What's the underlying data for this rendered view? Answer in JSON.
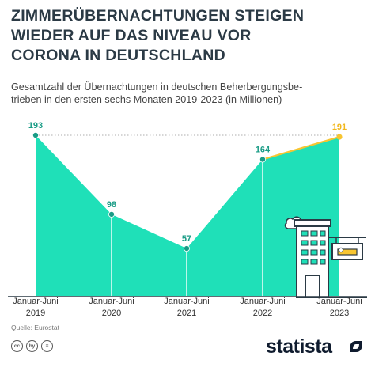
{
  "header": {
    "title_lines": [
      "ZIMMERÜBERNACHTUNGEN STEIGEN",
      "WIEDER AUF DAS NIVEAU VOR",
      "CORONA IN DEUTSCHLAND"
    ],
    "subtitle_lines": [
      "Gesamtzahl der Übernachtungen in deutschen Beherbergungsbe-",
      "trieben in den ersten sechs Monaten 2019-2023 (in Millionen)"
    ]
  },
  "chart_data": {
    "type": "area",
    "title": "ZIMMERÜBERNACHTUNGEN STEIGEN WIEDER AUF DAS NIVEAU VOR CORONA IN DEUTSCHLAND",
    "subtitle": "Gesamtzahl der Übernachtungen in deutschen Beherbergungsbetrieben in den ersten sechs Monaten 2019-2023 (in Millionen)",
    "categories": [
      {
        "line1": "Januar-Juni",
        "line2": "2019"
      },
      {
        "line1": "Januar-Juni",
        "line2": "2020"
      },
      {
        "line1": "Januar-Juni",
        "line2": "2021"
      },
      {
        "line1": "Januar-Juni",
        "line2": "2022"
      },
      {
        "line1": "Januar-Juni",
        "line2": "2023"
      }
    ],
    "values": [
      193,
      98,
      57,
      164,
      191
    ],
    "value_labels": [
      "193",
      "98",
      "57",
      "164",
      "191"
    ],
    "xlabel": "",
    "ylabel": "",
    "ylim": [
      0,
      193
    ],
    "grid": false,
    "reference_line_value": 193,
    "colors": {
      "area": "#1fe0b8",
      "point": "#1a9c86",
      "highlight": "#f7c531",
      "label": "#1a9c86",
      "highlight_label": "#f2b81f",
      "reference": "#bdbdbd"
    }
  },
  "footer": {
    "source": "Quelle: Eurostat",
    "license_icons": [
      "cc",
      "by",
      "="
    ],
    "brand": "statista"
  },
  "decoration": {
    "illustration": "hotel-building-icon"
  }
}
